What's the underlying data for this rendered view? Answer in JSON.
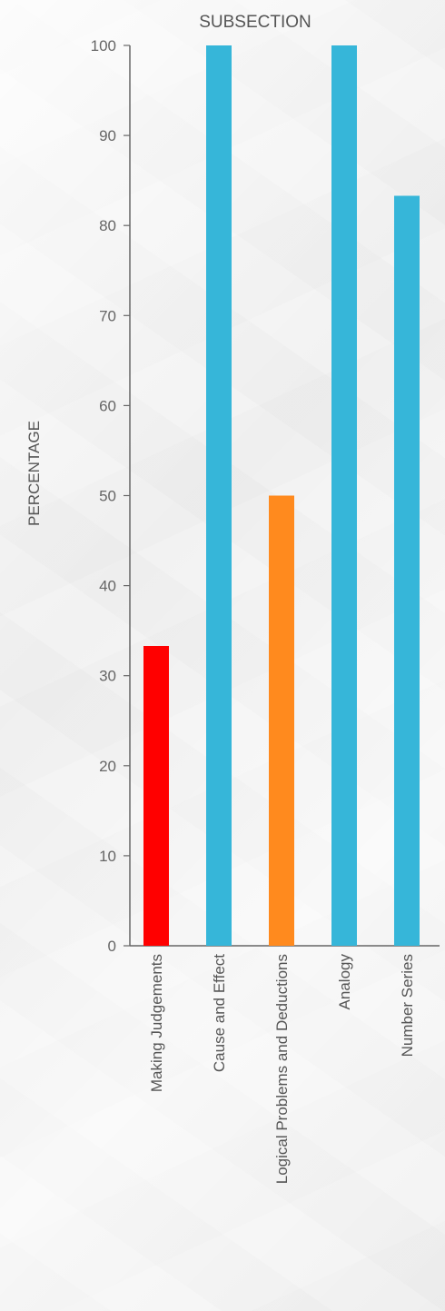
{
  "chart_data": {
    "type": "bar",
    "title": "SUBSECTION",
    "xlabel": "",
    "ylabel": "PERCENTAGE",
    "ylim": [
      0,
      100
    ],
    "yticks": [
      0,
      10,
      20,
      30,
      40,
      50,
      60,
      70,
      80,
      90,
      100
    ],
    "categories": [
      "Making Judgements",
      "Cause and Effect",
      "Logical Problems and Deductions",
      "Analogy",
      "Number Series"
    ],
    "values": [
      33.3,
      100,
      50,
      100,
      83.3
    ],
    "colors": [
      "#ff0000",
      "#36b6d9",
      "#ff8a1e",
      "#36b6d9",
      "#36b6d9"
    ],
    "grid": false,
    "legend": "none"
  }
}
